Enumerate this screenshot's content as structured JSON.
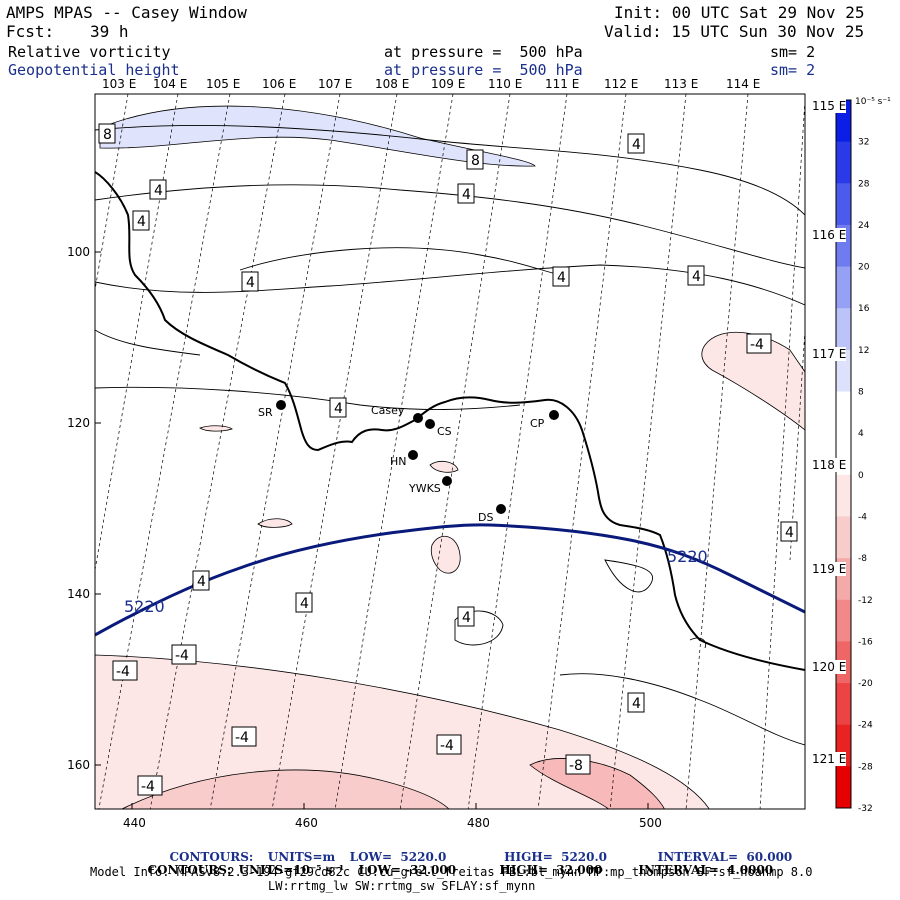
{
  "header": {
    "title": "AMPS MPAS -- Casey Window",
    "init": "Init: 00 UTC Sat 29 Nov 25",
    "fcst_label": "Fcst:",
    "fcst_value": "39 h",
    "valid": "Valid: 15 UTC Sun 30 Nov 25",
    "field1": {
      "name": "Relative vorticity",
      "level": "at pressure =  500 hPa",
      "sm": "sm= 2"
    },
    "field2": {
      "name": "Geopotential height",
      "level": "at pressure =  500 hPa",
      "sm": "sm= 2"
    }
  },
  "axes": {
    "top_lon": [
      "103 E",
      "104 E",
      "105 E",
      "106 E",
      "107 E",
      "108 E",
      "109 E",
      "110 E",
      "111 E",
      "112 E",
      "113 E",
      "114 E"
    ],
    "right_lon": [
      "115 E",
      "116 E",
      "117 E",
      "118 E",
      "119 E",
      "120 E",
      "121 E"
    ],
    "y_ticks": [
      "100",
      "120",
      "140",
      "160"
    ],
    "x_ticks": [
      "440",
      "460",
      "480",
      "500"
    ]
  },
  "colorbar": {
    "unit": "10⁻⁵ s⁻¹",
    "labels": [
      "32",
      "28",
      "24",
      "20",
      "16",
      "12",
      "8",
      "4",
      "0",
      "-4",
      "-8",
      "-12",
      "-16",
      "-20",
      "-24",
      "-28",
      "-32"
    ],
    "colors": [
      "#0a1ee6",
      "#2a3ae8",
      "#4b5bec",
      "#6f7cf0",
      "#96a0f4",
      "#bcc3f8",
      "#dde1fb",
      "#ffffff",
      "#ffffff",
      "#fde6e6",
      "#f9cccc",
      "#f5aaaa",
      "#f28888",
      "#ef6666",
      "#ec4444",
      "#e92222",
      "#e60000"
    ]
  },
  "stations": [
    {
      "id": "SR"
    },
    {
      "id": "Casey"
    },
    {
      "id": "CS"
    },
    {
      "id": "CP"
    },
    {
      "id": "HN"
    },
    {
      "id": "YWKS"
    },
    {
      "id": "DS"
    }
  ],
  "contours": {
    "height_label": "5220",
    "vort_labels": [
      "8",
      "4",
      "-4",
      "-8"
    ]
  },
  "footer": {
    "line1": {
      "label": "CONTOURS:",
      "units": "UNITS=m",
      "low": "LOW=  5220.0",
      "high": "HIGH=  5220.0",
      "interval": "INTERVAL=  60.000"
    },
    "line2": {
      "label": "CONTOURS:",
      "units": "UNITS=10⁻⁵ s⁻¹",
      "low": "LOW= -32.000",
      "high": "HIGH=  32.000",
      "interval": "INTERVAL=  4.0000"
    },
    "model_info": "Model Info: MPASv8.2.3-194-gf29cd82c CU:cu_grell_freitas PBL:bl_mynn MP:mp_thompson SF:sf_noahmp 8.0",
    "model_info2": "LW:rrtmg_lw SW:rrtmg_sw SFLAY:sf_mynn"
  }
}
